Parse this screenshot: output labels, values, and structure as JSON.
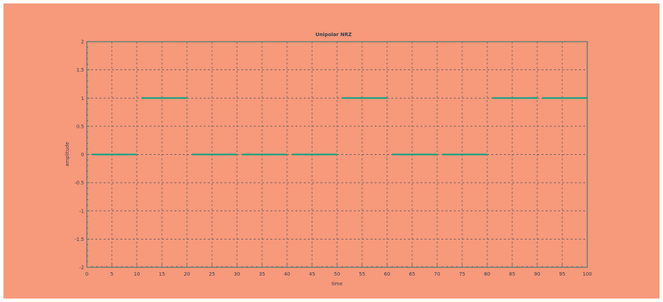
{
  "colors": {
    "figure_background": "#f7997b",
    "axis": "#2a6f6f",
    "grid": "#4a5560",
    "text": "#333f4f",
    "signal": "#0fa384"
  },
  "chart_data": {
    "type": "line",
    "title": "Unipolar NRZ",
    "xlabel": "time",
    "ylabel": "amplitude",
    "xlim": [
      0,
      100
    ],
    "ylim": [
      -2,
      2
    ],
    "grid": true,
    "line_style": "dashed grid",
    "x_ticks": [
      0,
      5,
      10,
      15,
      20,
      25,
      30,
      35,
      40,
      45,
      50,
      55,
      60,
      65,
      70,
      75,
      80,
      85,
      90,
      95,
      100
    ],
    "y_ticks": [
      -2,
      -1.5,
      -1,
      -0.5,
      0,
      0.5,
      1,
      1.5,
      2
    ],
    "bits": [
      0,
      1,
      0,
      0,
      0,
      1,
      0,
      0,
      1,
      1
    ],
    "series": [
      {
        "segments": [
          {
            "x_start": 1,
            "x_end": 10,
            "y": 0
          },
          {
            "x_start": 11,
            "x_end": 20,
            "y": 1
          },
          {
            "x_start": 21,
            "x_end": 30,
            "y": 0
          },
          {
            "x_start": 31,
            "x_end": 40,
            "y": 0
          },
          {
            "x_start": 41,
            "x_end": 50,
            "y": 0
          },
          {
            "x_start": 51,
            "x_end": 60,
            "y": 1
          },
          {
            "x_start": 61,
            "x_end": 70,
            "y": 0
          },
          {
            "x_start": 71,
            "x_end": 80,
            "y": 0
          },
          {
            "x_start": 81,
            "x_end": 90,
            "y": 1
          },
          {
            "x_start": 91,
            "x_end": 100,
            "y": 1
          }
        ]
      }
    ]
  }
}
